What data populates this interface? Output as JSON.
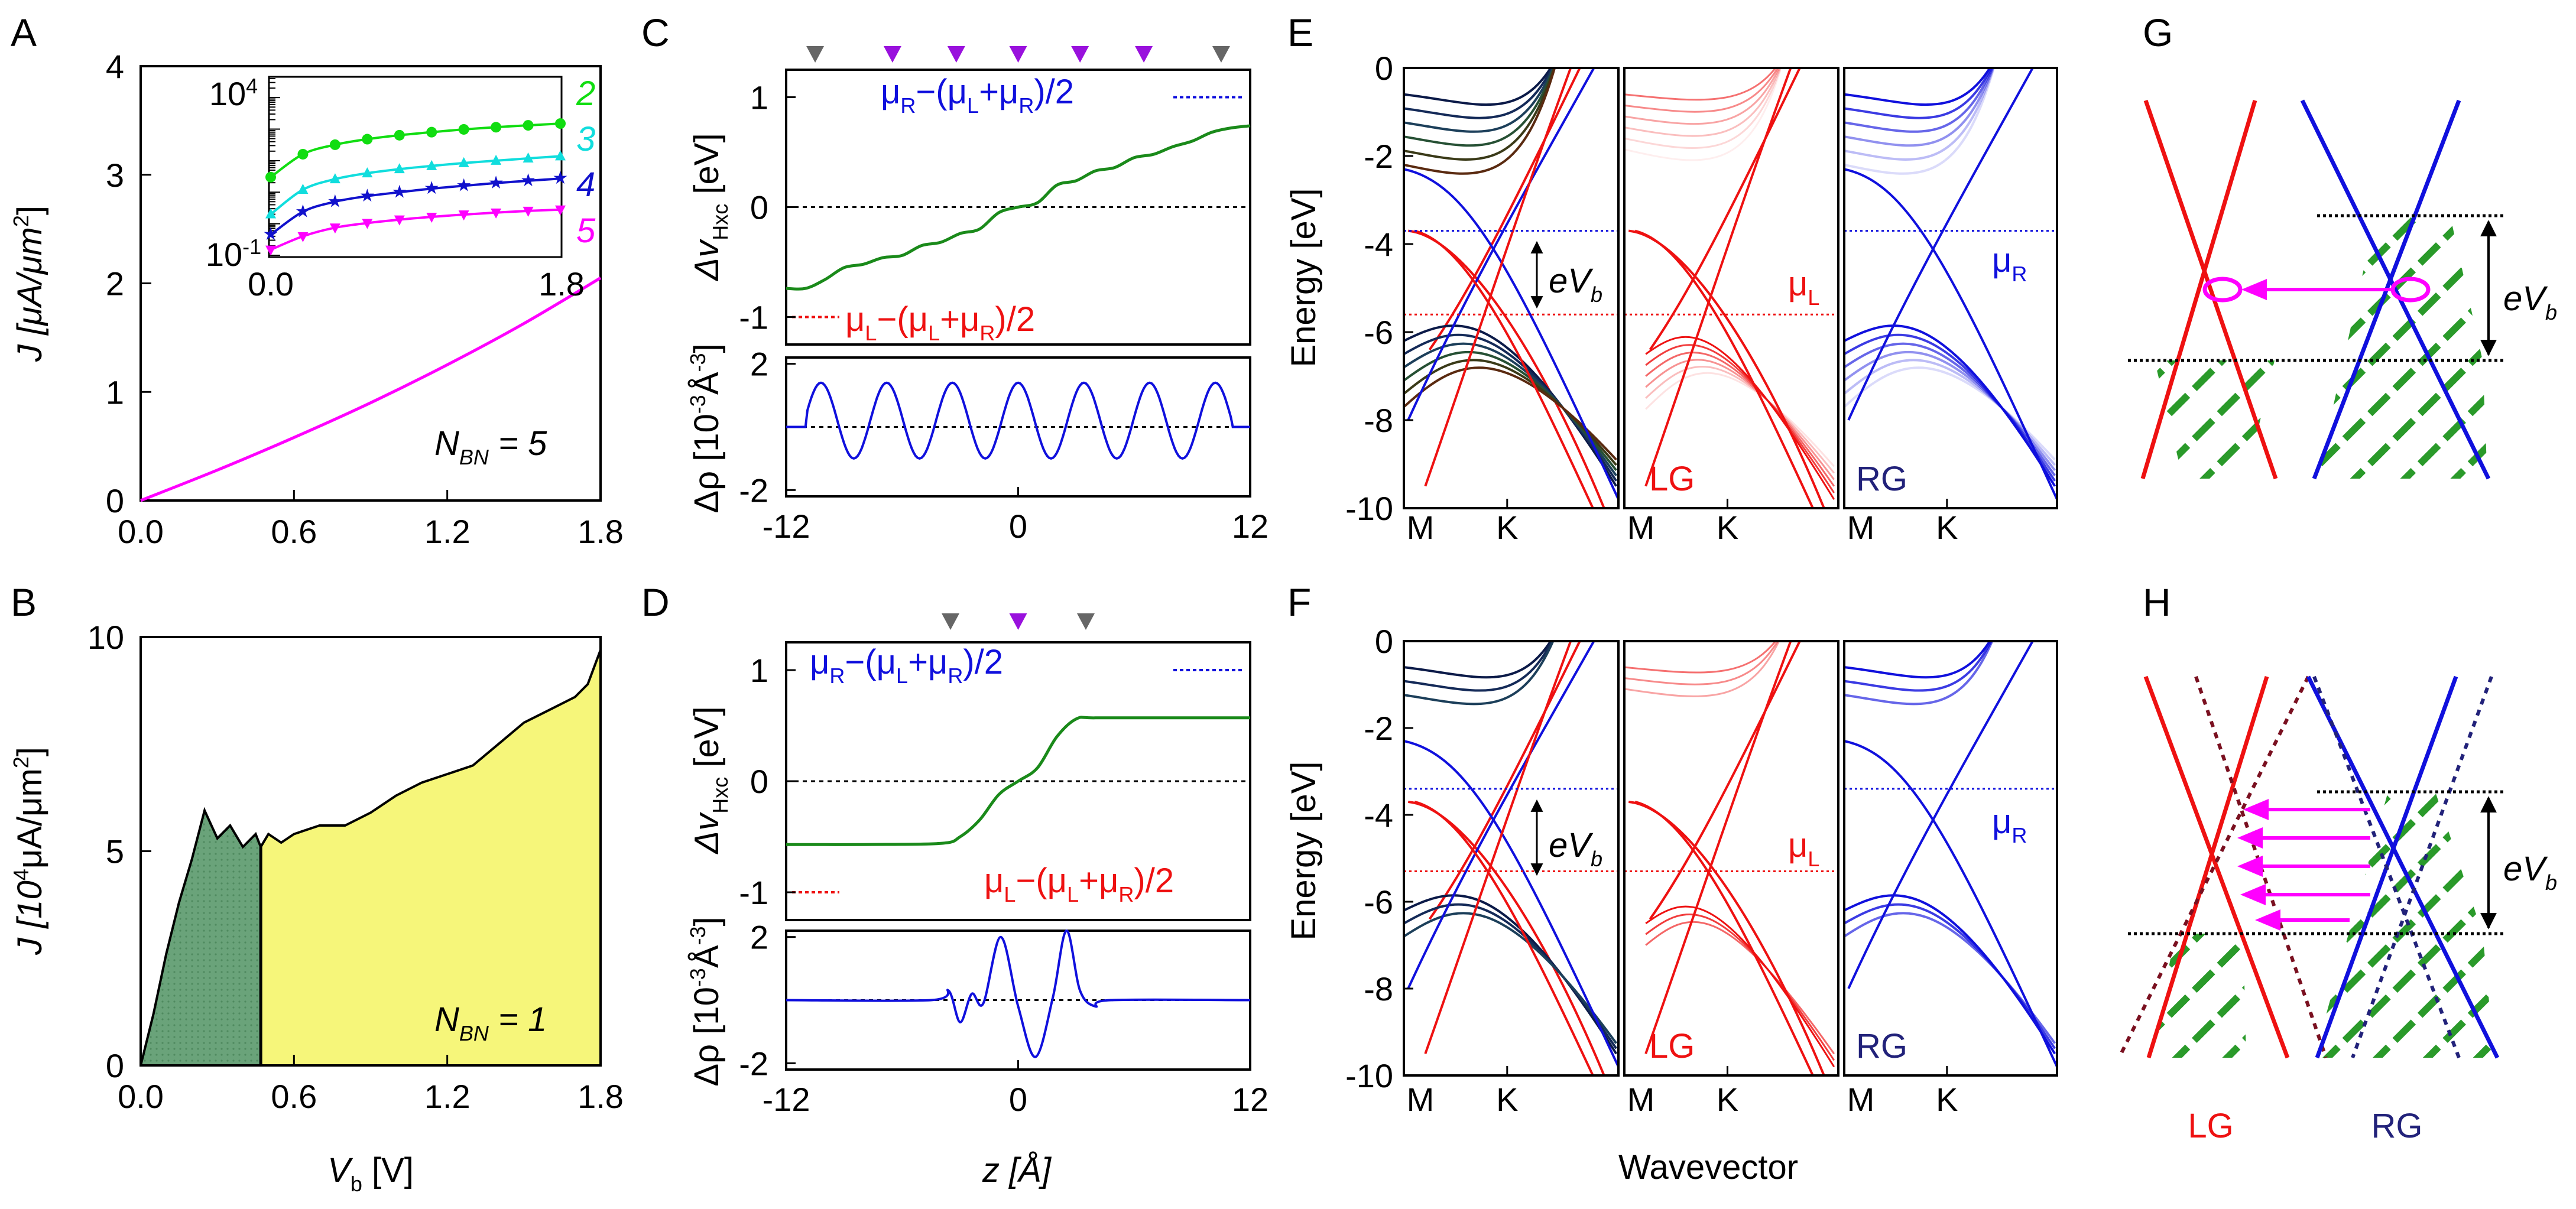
{
  "figure": {
    "letters": {
      "A": "A",
      "B": "B",
      "C": "C",
      "D": "D",
      "E": "E",
      "F": "F",
      "G": "G",
      "H": "H"
    },
    "colors": {
      "magenta": "#ff00ff",
      "green": "#1a8f1a",
      "blue": "#1010dd",
      "red": "#ee1111",
      "navy": "#22227a",
      "yellow": "#f6f67a",
      "darkgreen": "#5e9b6a",
      "darkred": "#7a1020"
    },
    "panel_A": {
      "ylabel_prefix": "J [μA/μm",
      "ylabel_sup": "2",
      "ylabel_suffix": "]",
      "annotation": "N",
      "annotation_sub": "BN",
      "annotation_value": " = 5",
      "inset_xticks": [
        "0.0",
        "1.8"
      ],
      "inset_yticks": [
        {
          "base": "10",
          "exp": "4"
        },
        {
          "base": "10",
          "exp": "-1"
        }
      ],
      "inset_labels": [
        "2",
        "3",
        "4",
        "5"
      ]
    },
    "panel_B": {
      "ylabel_prefix": "J [10",
      "ylabel_sup": "4",
      "ylabel_suffix": "μA/μm",
      "ylabel_sup2": "2",
      "ylabel_end": "]",
      "xlabel": "V",
      "xlabel_sub": "b",
      "xlabel_unit": " [V]",
      "annotation": "N",
      "annotation_sub": "BN",
      "annotation_value": " = 1"
    },
    "panel_C": {
      "ylabel_top": "Δv",
      "ylabel_top_sub": "Hxc",
      "ylabel_top_unit": " [eV]",
      "ylabel_bottom": "Δρ [10",
      "ylabel_bottom_sup": "-3",
      "ylabel_bottom_unit": "Å",
      "ylabel_bottom_sup2": "-3",
      "ylabel_bottom_end": "]",
      "label_R": "μR−(μL+μR)/2",
      "label_L": "μL−(μL+μR)/2"
    },
    "panel_D": {
      "xlabel": "z [Å]",
      "label_R": "μR−(μL+μR)/2",
      "label_L": "μL−(μL+μR)/2"
    },
    "panel_E": {
      "ylabel": "Energy [eV]",
      "bias_label": "eV",
      "bias_sub": "b",
      "mu_L": "μL",
      "mu_R": "μR",
      "sub_labels": [
        "LG",
        "RG"
      ]
    },
    "panel_F": {
      "ylabel": "Energy [eV]",
      "xlabel": "Wavevector",
      "bias_label": "eV",
      "bias_sub": "b",
      "mu_L": "μL",
      "mu_R": "μR",
      "sub_labels": [
        "LG",
        "RG"
      ]
    },
    "panel_G": {
      "bias_label": "eV",
      "bias_sub": "b"
    },
    "panel_H": {
      "bias_label": "eV",
      "bias_sub": "b",
      "labels": [
        "LG",
        "RG"
      ]
    }
  },
  "chart_data": [
    {
      "id": "A",
      "type": "line",
      "xlabel": "",
      "ylabel": "J [μA/μm²]",
      "xlim": [
        0,
        1.8
      ],
      "ylim": [
        0,
        4
      ],
      "xticks": [
        "0.0",
        "0.6",
        "1.2",
        "1.8"
      ],
      "yticks": [
        "0",
        "1",
        "2",
        "3",
        "4"
      ],
      "series": [
        {
          "name": "N_BN = 5",
          "color": "#ff00ff",
          "x": [
            0,
            0.3,
            0.6,
            0.9,
            1.2,
            1.5,
            1.8
          ],
          "y": [
            0,
            0.28,
            0.58,
            0.9,
            1.25,
            1.63,
            2.05
          ]
        }
      ],
      "inset": {
        "type": "line",
        "yscale": "log",
        "xlim": [
          0,
          1.8
        ],
        "ylim": [
          0.1,
          40000
        ],
        "series": [
          {
            "name": "2",
            "color": "#11dd11",
            "x": [
              0,
              0.2,
              0.4,
              0.6,
              0.8,
              1.0,
              1.2,
              1.4,
              1.6,
              1.8
            ],
            "y": [
              30,
              160,
              320,
              480,
              640,
              800,
              980,
              1150,
              1320,
              1500
            ]
          },
          {
            "name": "3",
            "color": "#11dddd",
            "x": [
              0,
              0.2,
              0.4,
              0.6,
              0.8,
              1.0,
              1.2,
              1.4,
              1.6,
              1.8
            ],
            "y": [
              2,
              12,
              26,
              40,
              54,
              68,
              84,
              100,
              118,
              138
            ]
          },
          {
            "name": "4",
            "color": "#1111cc",
            "x": [
              0,
              0.2,
              0.4,
              0.6,
              0.8,
              1.0,
              1.2,
              1.4,
              1.6,
              1.8
            ],
            "y": [
              0.45,
              2.4,
              5,
              7.5,
              10,
              13,
              16,
              19.5,
              23,
              27
            ]
          },
          {
            "name": "5",
            "color": "#ff00ff",
            "x": [
              0,
              0.2,
              0.4,
              0.6,
              0.8,
              1.0,
              1.2,
              1.4,
              1.6,
              1.8
            ],
            "y": [
              0.15,
              0.4,
              0.75,
              1.05,
              1.35,
              1.65,
              1.95,
              2.25,
              2.55,
              2.8
            ]
          }
        ]
      }
    },
    {
      "id": "B",
      "type": "area",
      "xlabel": "V_b [V]",
      "ylabel": "J [10⁴μA/μm²]",
      "xlim": [
        0,
        1.8
      ],
      "ylim": [
        0,
        10
      ],
      "xticks": [
        "0.0",
        "0.6",
        "1.2",
        "1.8"
      ],
      "yticks": [
        "0",
        "5",
        "10"
      ],
      "split_x": 0.47,
      "fill_left": "#5e9b6a",
      "fill_right": "#f6f67a",
      "x": [
        0,
        0.05,
        0.1,
        0.15,
        0.2,
        0.25,
        0.3,
        0.35,
        0.4,
        0.45,
        0.47,
        0.5,
        0.55,
        0.6,
        0.7,
        0.8,
        0.9,
        1.0,
        1.1,
        1.2,
        1.3,
        1.4,
        1.5,
        1.6,
        1.7,
        1.75,
        1.8
      ],
      "y": [
        0,
        1.2,
        2.6,
        3.8,
        4.8,
        5.95,
        5.3,
        5.6,
        5.1,
        5.4,
        5.1,
        5.4,
        5.2,
        5.4,
        5.6,
        5.6,
        5.9,
        6.3,
        6.6,
        6.8,
        7.0,
        7.5,
        8.0,
        8.3,
        8.6,
        8.9,
        9.7
      ]
    },
    {
      "id": "C",
      "type": "line",
      "xlim": [
        -12,
        12
      ],
      "xticks": [
        "-12",
        "0",
        "12"
      ],
      "top": {
        "ylim": [
          -1.25,
          1.25
        ],
        "yticks": [
          "-1",
          "0",
          "1"
        ],
        "series": [
          {
            "name": "Δv_Hxc",
            "color": "#1a8a1a",
            "x": [
              -12,
              -11,
              -10,
              -9,
              -8,
              -7,
              -6,
              -5,
              -4,
              -3,
              -2,
              -1,
              0,
              1,
              2,
              3,
              4,
              5,
              6,
              7,
              8,
              9,
              10,
              11,
              12
            ],
            "y": [
              -0.74,
              -0.74,
              -0.66,
              -0.55,
              -0.52,
              -0.46,
              -0.44,
              -0.35,
              -0.32,
              -0.24,
              -0.2,
              -0.05,
              0.0,
              0.04,
              0.2,
              0.24,
              0.33,
              0.36,
              0.45,
              0.48,
              0.55,
              0.6,
              0.68,
              0.72,
              0.74
            ]
          }
        ],
        "ref_lines": [
          {
            "y": 1.0,
            "color": "#1010dd",
            "label": "μR−(μL+μR)/2"
          },
          {
            "y": -1.0,
            "color": "#ee1111",
            "label": "μL−(μL+μR)/2"
          }
        ]
      },
      "bottom": {
        "ylim": [
          -2.2,
          2.2
        ],
        "yticks": [
          "-2",
          "2"
        ],
        "series": [
          {
            "name": "Δρ",
            "color": "#1010dd",
            "period": 3.4,
            "amplitude": 1.2,
            "x_range": [
              -11,
              11
            ]
          }
        ]
      },
      "markers": [
        {
          "x": -10.5,
          "color": "#666666"
        },
        {
          "x": -6.5,
          "color": "#9911dd"
        },
        {
          "x": -3.2,
          "color": "#9911dd"
        },
        {
          "x": 0,
          "color": "#9911dd"
        },
        {
          "x": 3.2,
          "color": "#9911dd"
        },
        {
          "x": 6.5,
          "color": "#9911dd"
        },
        {
          "x": 10.5,
          "color": "#666666"
        }
      ]
    },
    {
      "id": "D",
      "type": "line",
      "xlim": [
        -12,
        12
      ],
      "xticks": [
        "-12",
        "0",
        "12"
      ],
      "xlabel": "z [Å]",
      "top": {
        "ylim": [
          -1.25,
          1.25
        ],
        "yticks": [
          "-1",
          "0",
          "1"
        ],
        "series": [
          {
            "name": "Δv_Hxc",
            "color": "#1a8a1a",
            "x": [
              -12,
              -8,
              -4,
              -3,
              -2,
              -1,
              0,
              1,
              2,
              3,
              4,
              8,
              12
            ],
            "y": [
              -0.57,
              -0.57,
              -0.56,
              -0.5,
              -0.35,
              -0.12,
              0.0,
              0.12,
              0.4,
              0.56,
              0.57,
              0.57,
              0.57
            ]
          }
        ],
        "ref_lines": [
          {
            "y": 1.0,
            "color": "#1010dd",
            "label": "μR−(μL+μR)/2"
          },
          {
            "y": -1.0,
            "color": "#ee1111",
            "label": "μL−(μL+μR)/2"
          }
        ]
      },
      "bottom": {
        "ylim": [
          -2.2,
          2.2
        ],
        "yticks": [
          "-2",
          "2"
        ],
        "series": [
          {
            "name": "Δρ",
            "color": "#1010dd",
            "x": [
              -12,
              -4.5,
              -3.6,
              -3.0,
              -2.4,
              -1.8,
              -0.9,
              0,
              0.9,
              1.8,
              2.5,
              3.2,
              4.0,
              4.8,
              12
            ],
            "y": [
              0,
              0,
              0.3,
              -0.7,
              0.2,
              -0.1,
              2.0,
              -0.2,
              -1.8,
              0.1,
              2.2,
              0.3,
              -0.2,
              0,
              0
            ]
          }
        ]
      },
      "markers": [
        {
          "x": -3.5,
          "color": "#666666"
        },
        {
          "x": 0,
          "color": "#9911dd"
        },
        {
          "x": 3.5,
          "color": "#666666"
        }
      ]
    },
    {
      "id": "E",
      "type": "line",
      "subpanels": [
        "full",
        "LG",
        "RG"
      ],
      "ylabel": "Energy [eV]",
      "ylim": [
        -10,
        0
      ],
      "yticks": [
        "0",
        "-2",
        "-4",
        "-6",
        "-8",
        "-10"
      ],
      "xticks": [
        "M",
        "K"
      ],
      "mu_L": -5.6,
      "mu_R": -3.7
    },
    {
      "id": "F",
      "type": "line",
      "subpanels": [
        "full",
        "LG",
        "RG"
      ],
      "ylabel": "Energy [eV]",
      "xlabel": "Wavevector",
      "ylim": [
        -10,
        0
      ],
      "yticks": [
        "0",
        "-2",
        "-4",
        "-6",
        "-8",
        "-10"
      ],
      "xticks": [
        "M",
        "K"
      ],
      "mu_L": -5.3,
      "mu_R": -3.4
    }
  ]
}
